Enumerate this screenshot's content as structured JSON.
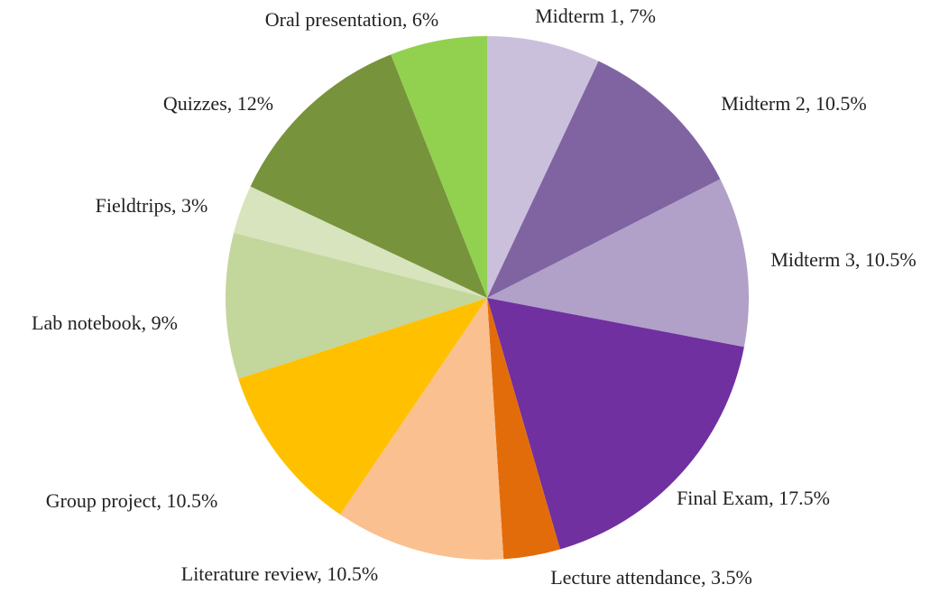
{
  "chart_data": {
    "type": "pie",
    "categories": [
      "Midterm 1",
      "Midterm 2",
      "Midterm 3",
      "Final Exam",
      "Lecture attendance",
      "Literature review",
      "Group project",
      "Lab notebook",
      "Fieldtrips",
      "Quizzes",
      "Oral presentation"
    ],
    "values": [
      7,
      10.5,
      10.5,
      17.5,
      3.5,
      10.5,
      10.5,
      9,
      3,
      12,
      6
    ],
    "value_labels": [
      "7%",
      "10.5%",
      "10.5%",
      "17.5%",
      "3.5%",
      "10.5%",
      "10.5%",
      "9%",
      "3%",
      "12%",
      "6%"
    ],
    "colors": [
      "#cbc0dc",
      "#8064a2",
      "#b1a0c7",
      "#7030a0",
      "#e36c0a",
      "#fac090",
      "#ffc000",
      "#c3d69b",
      "#d7e4bd",
      "#77933c",
      "#92d050"
    ]
  }
}
